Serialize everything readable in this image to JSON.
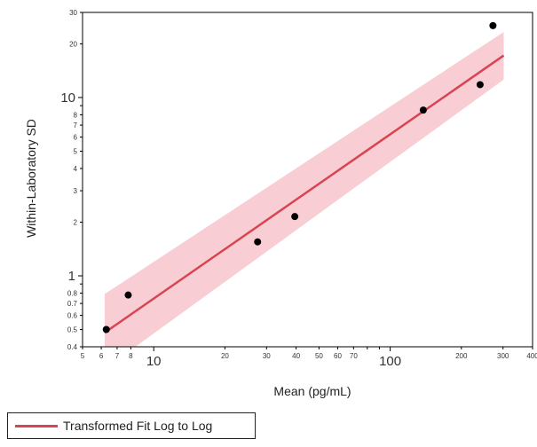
{
  "chart_data": {
    "type": "scatter",
    "title": "",
    "xlabel": "Mean (pg/mL)",
    "ylabel": "Within-Laboratory  SD",
    "x_scale": "log",
    "y_scale": "log",
    "xlim": [
      5,
      400
    ],
    "ylim": [
      0.4,
      30
    ],
    "x_ticks": [
      {
        "value": 5,
        "label": "5",
        "major": false
      },
      {
        "value": 6,
        "label": "6",
        "major": false
      },
      {
        "value": 7,
        "label": "7",
        "major": false
      },
      {
        "value": 8,
        "label": "8",
        "major": false
      },
      {
        "value": 10,
        "label": "10",
        "major": true
      },
      {
        "value": 20,
        "label": "20",
        "major": false
      },
      {
        "value": 30,
        "label": "30",
        "major": false
      },
      {
        "value": 40,
        "label": "40",
        "major": false
      },
      {
        "value": 50,
        "label": "50",
        "major": false
      },
      {
        "value": 60,
        "label": "60",
        "major": false
      },
      {
        "value": 70,
        "label": "70",
        "major": false
      },
      {
        "value": 100,
        "label": "100",
        "major": true
      },
      {
        "value": 200,
        "label": "200",
        "major": false
      },
      {
        "value": 300,
        "label": "300",
        "major": false
      },
      {
        "value": 400,
        "label": "400",
        "major": false
      }
    ],
    "x_minor_unlabeled": [
      80,
      90
    ],
    "y_ticks": [
      {
        "value": 0.4,
        "label": "0.4",
        "major": false
      },
      {
        "value": 0.5,
        "label": "0.5",
        "major": false
      },
      {
        "value": 0.6,
        "label": "0.6",
        "major": false
      },
      {
        "value": 0.7,
        "label": "0.7",
        "major": false
      },
      {
        "value": 0.8,
        "label": "0.8",
        "major": false
      },
      {
        "value": 1,
        "label": "1",
        "major": true
      },
      {
        "value": 2,
        "label": "2",
        "major": false
      },
      {
        "value": 3,
        "label": "3",
        "major": false
      },
      {
        "value": 4,
        "label": "4",
        "major": false
      },
      {
        "value": 5,
        "label": "5",
        "major": false
      },
      {
        "value": 6,
        "label": "6",
        "major": false
      },
      {
        "value": 7,
        "label": "7",
        "major": false
      },
      {
        "value": 8,
        "label": "8",
        "major": false
      },
      {
        "value": 10,
        "label": "10",
        "major": true
      },
      {
        "value": 20,
        "label": "20",
        "major": false
      },
      {
        "value": 30,
        "label": "30",
        "major": false
      }
    ],
    "y_minor_unlabeled": [
      0.9,
      9
    ],
    "points": [
      {
        "x": 6.3,
        "y": 0.5
      },
      {
        "x": 7.8,
        "y": 0.78
      },
      {
        "x": 27.5,
        "y": 1.55
      },
      {
        "x": 39.5,
        "y": 2.15
      },
      {
        "x": 138,
        "y": 8.5
      },
      {
        "x": 240,
        "y": 11.8
      },
      {
        "x": 272,
        "y": 25.3
      }
    ],
    "fit": {
      "name": "Transformed Fit Log to Log",
      "x_range": [
        6.2,
        302
      ],
      "y_range": [
        0.48,
        17.2
      ],
      "ci_lower": [
        0.3,
        12.6
      ],
      "ci_upper": [
        0.79,
        23.3
      ]
    },
    "colors": {
      "fit_line": "#d94452",
      "ci_band": "#f7c6cc",
      "points": "#000000",
      "frame": "#000000"
    },
    "legend": {
      "position": "bottom-left",
      "label": "Transformed Fit Log to Log"
    }
  }
}
